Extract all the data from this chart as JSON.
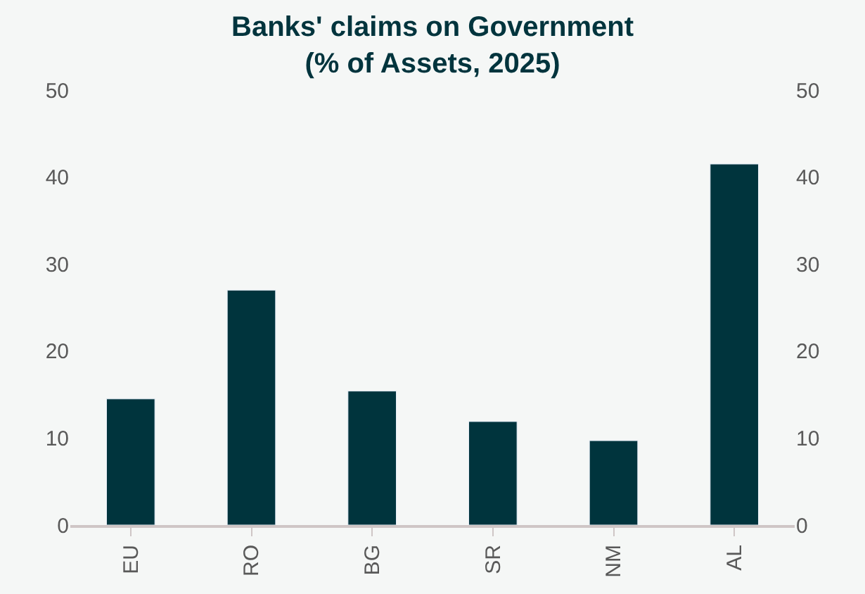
{
  "chart_data": {
    "type": "bar",
    "title": "Banks' claims on Government\n(% of Assets, 2025)",
    "categories": [
      "EU",
      "RO",
      "BG",
      "SR",
      "NM",
      "AL"
    ],
    "values": [
      14.5,
      27.0,
      15.4,
      11.9,
      9.7,
      41.5
    ],
    "color": "#00343d",
    "ylim": [
      0,
      50
    ],
    "yticks": [
      0,
      10,
      20,
      30,
      40,
      50
    ],
    "y2lim": [
      0,
      50
    ],
    "y2ticks": [
      0,
      10,
      20,
      30,
      40,
      50
    ]
  }
}
